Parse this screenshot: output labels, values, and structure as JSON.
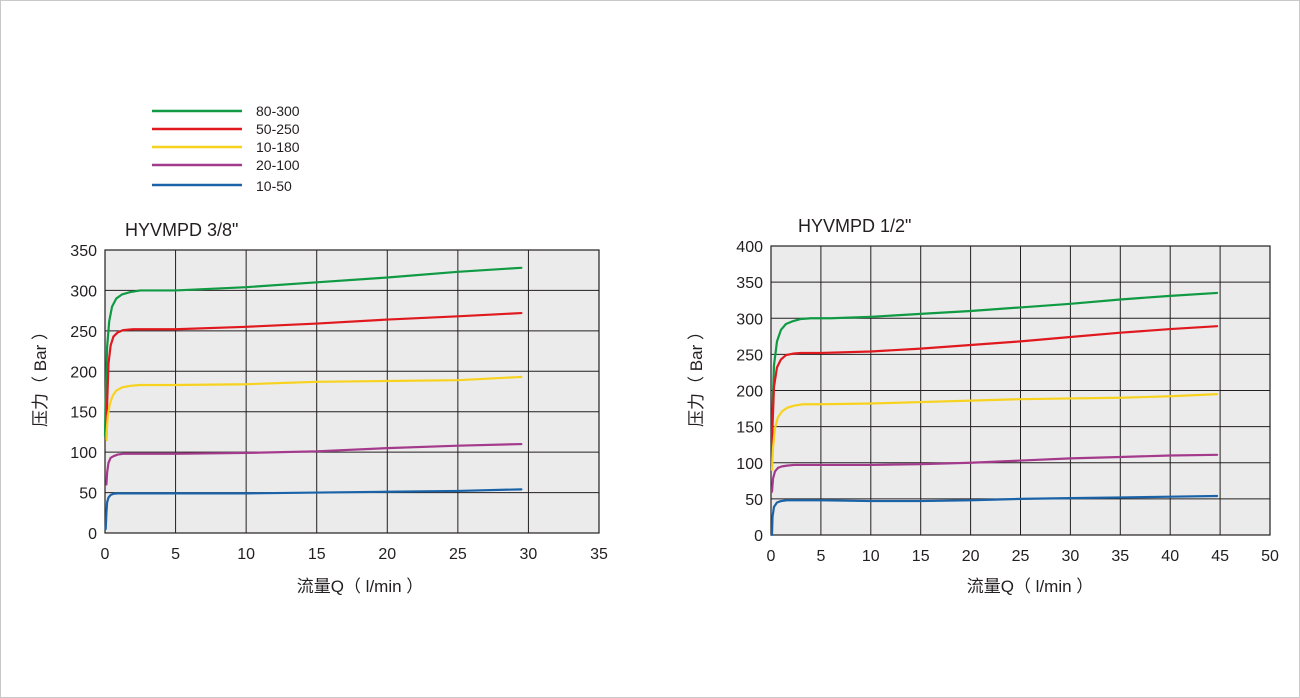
{
  "legend": {
    "items": [
      {
        "label": "80-300",
        "color": "#0f9a43"
      },
      {
        "label": "50-250",
        "color": "#e0191f"
      },
      {
        "label": "10-180",
        "color": "#f7d21e"
      },
      {
        "label": "20-100",
        "color": "#a43a8b"
      },
      {
        "label": "10-50",
        "color": "#1a63a8"
      }
    ]
  },
  "chart_data": [
    {
      "type": "line",
      "title": "HYVMPD 3/8\"",
      "xlabel": "流量Q（ l/min ）",
      "ylabel": "压力（ Bar ）",
      "xlim": [
        0,
        35
      ],
      "ylim": [
        0,
        350
      ],
      "xticks": [
        0,
        5,
        10,
        15,
        20,
        25,
        30,
        35
      ],
      "yticks": [
        0,
        50,
        100,
        150,
        200,
        250,
        300,
        350
      ],
      "grid": true,
      "background": "#ebebeb",
      "series": [
        {
          "name": "80-300",
          "color": "#0f9a43",
          "x": [
            0,
            0.05,
            0.15,
            0.3,
            0.5,
            0.8,
            1.2,
            1.8,
            2.5,
            3.5,
            5,
            10,
            15,
            20,
            25,
            29.5
          ],
          "y": [
            120,
            170,
            230,
            262,
            280,
            290,
            295,
            298,
            300,
            300,
            300,
            304,
            310,
            316,
            323,
            328
          ]
        },
        {
          "name": "50-250",
          "color": "#e0191f",
          "x": [
            0.1,
            0.15,
            0.25,
            0.4,
            0.6,
            0.9,
            1.3,
            2,
            3,
            5,
            10,
            15,
            20,
            25,
            29.5
          ],
          "y": [
            115,
            160,
            210,
            232,
            243,
            248,
            251,
            252,
            252,
            252,
            255,
            259,
            264,
            268,
            272
          ]
        },
        {
          "name": "10-180",
          "color": "#f7d21e",
          "x": [
            0.1,
            0.12,
            0.2,
            0.35,
            0.55,
            0.8,
            1.2,
            1.8,
            2.5,
            5,
            10,
            15,
            20,
            25,
            29.5
          ],
          "y": [
            115,
            125,
            145,
            160,
            170,
            176,
            180,
            182,
            183,
            183,
            184,
            187,
            188,
            189,
            193
          ]
        },
        {
          "name": "20-100",
          "color": "#a43a8b",
          "x": [
            0.1,
            0.15,
            0.25,
            0.4,
            0.6,
            0.9,
            1.3,
            2,
            3,
            5,
            10,
            15,
            20,
            25,
            29.5
          ],
          "y": [
            60,
            75,
            87,
            93,
            95,
            97,
            98,
            98,
            98,
            98,
            99,
            101,
            105,
            108,
            110
          ]
        },
        {
          "name": "10-50",
          "color": "#1a63a8",
          "x": [
            0.05,
            0.1,
            0.15,
            0.25,
            0.4,
            0.6,
            0.9,
            1.3,
            2,
            5,
            10,
            15,
            20,
            25,
            29.5
          ],
          "y": [
            5,
            25,
            38,
            44,
            47,
            48.5,
            49,
            49,
            49,
            49,
            49,
            50,
            51,
            52,
            54
          ]
        }
      ]
    },
    {
      "type": "line",
      "title": "HYVMPD 1/2\"",
      "xlabel": "流量Q（ l/min ）",
      "ylabel": "压力（ Bar ）",
      "xlim": [
        0,
        50
      ],
      "ylim": [
        0,
        400
      ],
      "xticks": [
        0,
        5,
        10,
        15,
        20,
        25,
        30,
        35,
        40,
        45,
        50
      ],
      "yticks": [
        0,
        50,
        100,
        150,
        200,
        250,
        300,
        350,
        400
      ],
      "grid": true,
      "background": "#ebebeb",
      "series": [
        {
          "name": "80-300",
          "color": "#0f9a43",
          "x": [
            0.1,
            0.15,
            0.3,
            0.6,
            1,
            1.5,
            2.2,
            3,
            4,
            6,
            10,
            15,
            20,
            25,
            30,
            35,
            40,
            44.7
          ],
          "y": [
            120,
            170,
            235,
            268,
            284,
            292,
            296,
            299,
            300,
            300,
            302,
            306,
            310,
            315,
            320,
            326,
            331,
            335
          ]
        },
        {
          "name": "50-250",
          "color": "#e0191f",
          "x": [
            0.1,
            0.15,
            0.3,
            0.6,
            1,
            1.5,
            2.2,
            3,
            5,
            10,
            15,
            20,
            25,
            30,
            35,
            40,
            44.7
          ],
          "y": [
            100,
            150,
            205,
            232,
            243,
            249,
            251,
            252,
            252,
            254,
            258,
            263,
            268,
            274,
            280,
            285,
            289
          ]
        },
        {
          "name": "10-180",
          "color": "#f7d21e",
          "x": [
            0.1,
            0.2,
            0.4,
            0.7,
            1.1,
            1.6,
            2.3,
            3.2,
            5,
            10,
            15,
            20,
            25,
            30,
            35,
            40,
            44.7
          ],
          "y": [
            90,
            120,
            148,
            163,
            171,
            176,
            179,
            181,
            181,
            182,
            184,
            186,
            188,
            189,
            190,
            192,
            195
          ]
        },
        {
          "name": "20-100",
          "color": "#a43a8b",
          "x": [
            0.1,
            0.2,
            0.4,
            0.7,
            1.1,
            1.6,
            2.3,
            3.2,
            5,
            10,
            15,
            20,
            25,
            30,
            35,
            40,
            44.7
          ],
          "y": [
            60,
            78,
            88,
            93,
            95,
            96,
            97,
            97,
            97,
            97,
            98,
            100,
            103,
            106,
            108,
            110,
            111
          ]
        },
        {
          "name": "10-50",
          "color": "#1a63a8",
          "x": [
            0.1,
            0.15,
            0.3,
            0.6,
            1,
            1.6,
            2.5,
            5,
            10,
            15,
            20,
            25,
            30,
            35,
            40,
            44.7
          ],
          "y": [
            0,
            25,
            39,
            45,
            47,
            48,
            48,
            48,
            47,
            47,
            48,
            50,
            51,
            52,
            53,
            54
          ]
        }
      ]
    }
  ]
}
